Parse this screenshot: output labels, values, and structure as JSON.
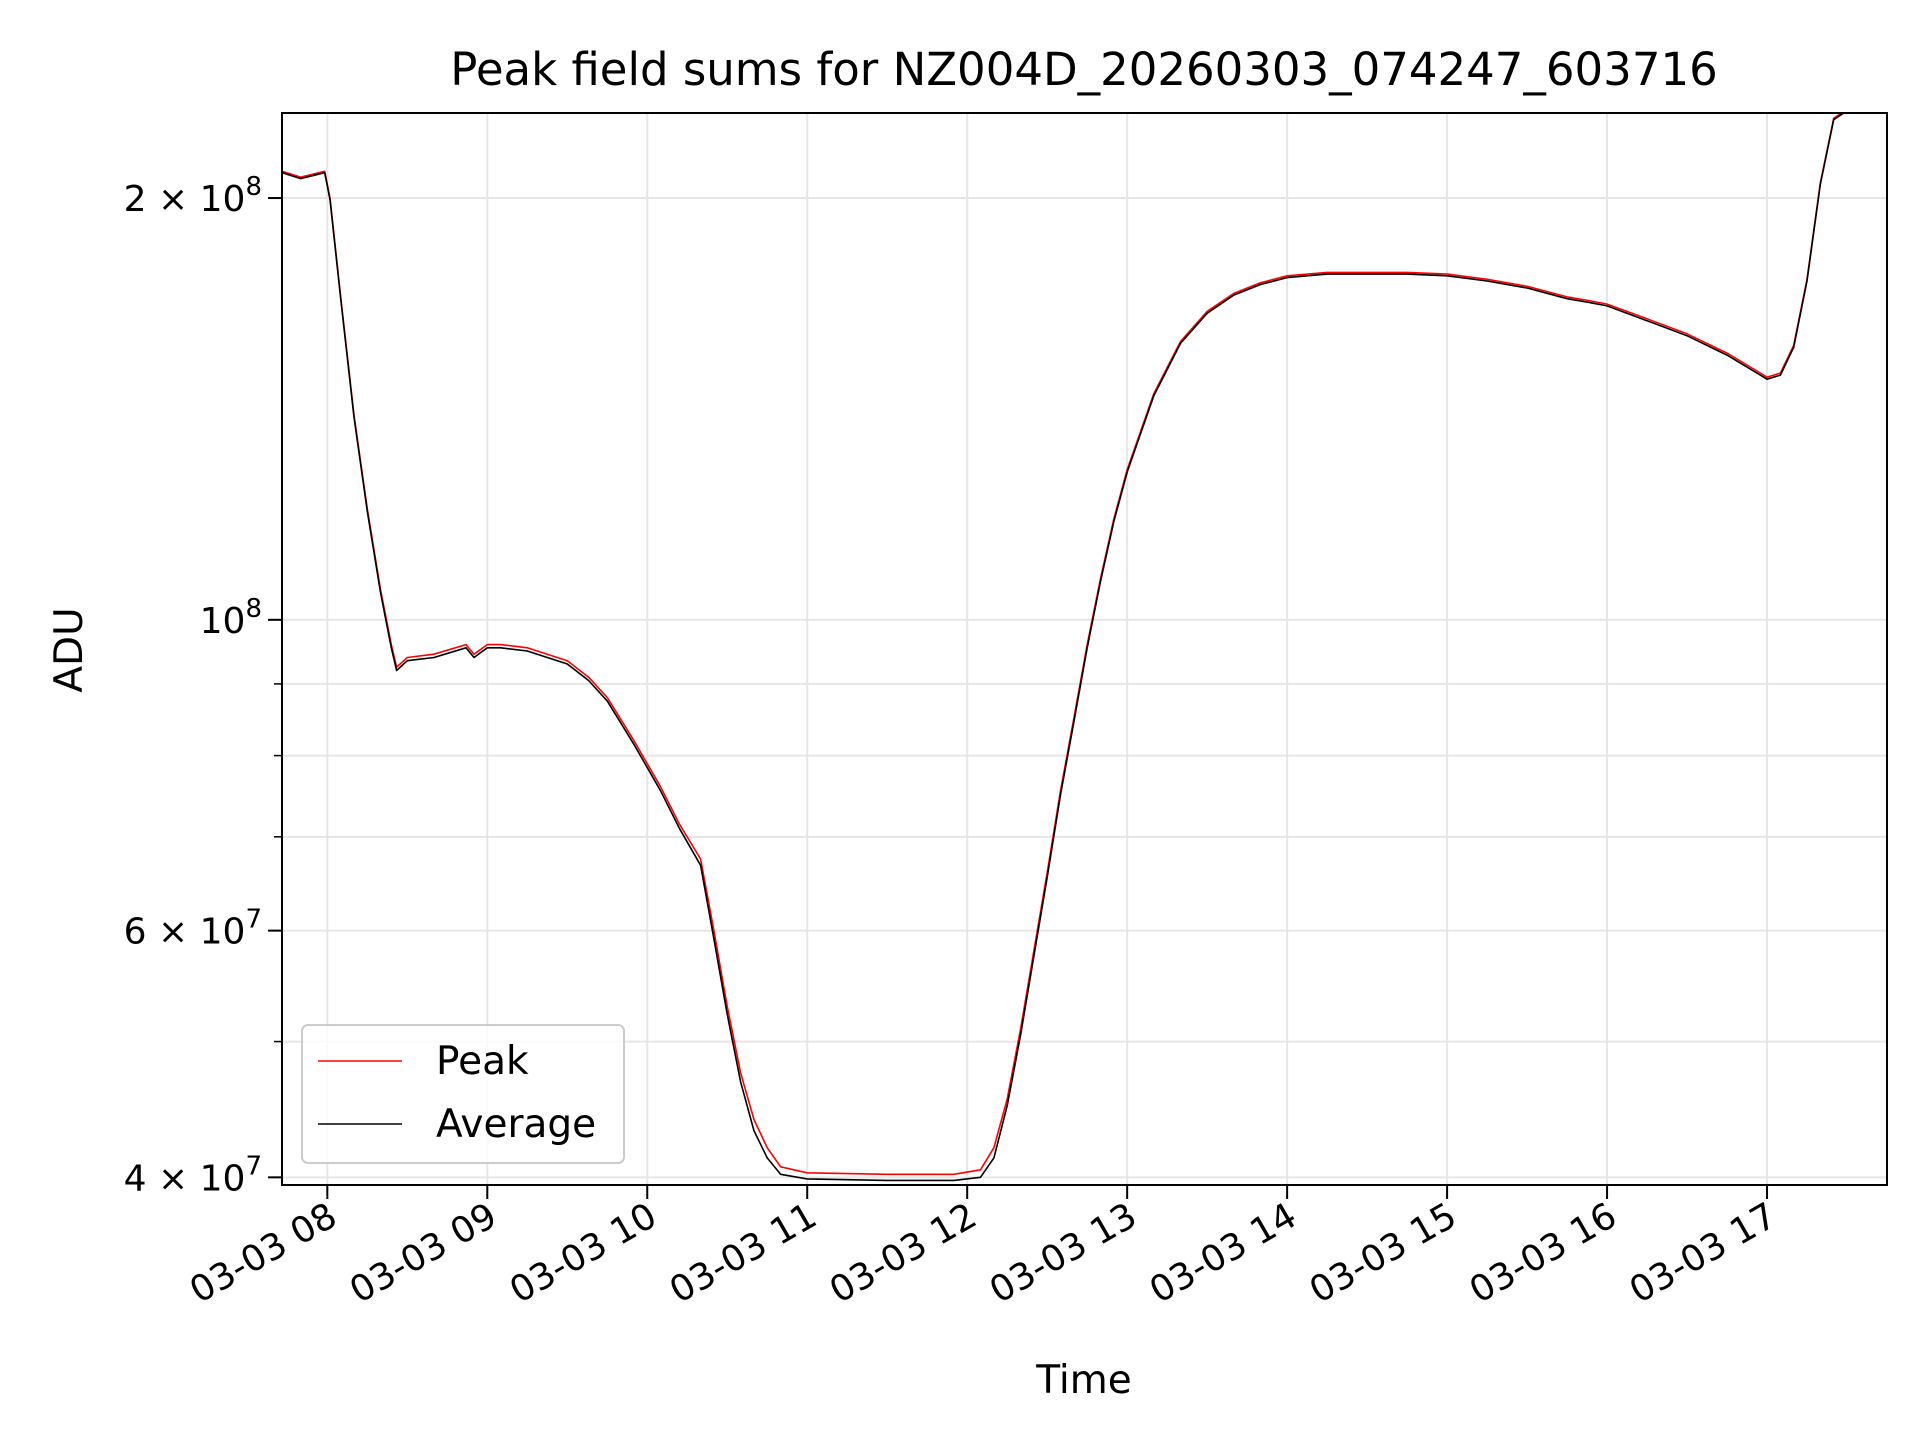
{
  "chart_data": {
    "type": "line",
    "title": "Peak field sums for NZ004D_20260303_074247_603716",
    "xlabel": "Time",
    "ylabel": "ADU",
    "x_axis_type": "datetime",
    "y_scale": "log",
    "xlim": [
      "2026-03-03 07:43",
      "2026-03-03 17:45"
    ],
    "ylim": [
      39500000,
      230000000
    ],
    "x_tick_labels": [
      "03-03 08",
      "03-03 09",
      "03-03 10",
      "03-03 11",
      "03-03 12",
      "03-03 13",
      "03-03 14",
      "03-03 15",
      "03-03 16",
      "03-03 17"
    ],
    "x_tick_times": [
      "2026-03-03 08:00",
      "2026-03-03 09:00",
      "2026-03-03 10:00",
      "2026-03-03 11:00",
      "2026-03-03 12:00",
      "2026-03-03 13:00",
      "2026-03-03 14:00",
      "2026-03-03 15:00",
      "2026-03-03 16:00",
      "2026-03-03 17:00"
    ],
    "y_major_ticks": [
      {
        "value": 40000000,
        "mantissa": "4",
        "exponent": "7"
      },
      {
        "value": 60000000,
        "mantissa": "6",
        "exponent": "7"
      },
      {
        "value": 100000000,
        "mantissa": "",
        "exponent": "8"
      },
      {
        "value": 200000000,
        "mantissa": "2",
        "exponent": "8"
      }
    ],
    "y_minor_ticks": [
      50000000,
      70000000,
      80000000,
      90000000
    ],
    "grid": true,
    "legend_position": "lower-left",
    "series": [
      {
        "name": "Peak",
        "color": "#ff0000",
        "x": [
          "2026-03-03 07:43",
          "2026-03-03 07:50",
          "2026-03-03 07:59",
          "2026-03-03 08:01",
          "2026-03-03 08:05",
          "2026-03-03 08:10",
          "2026-03-03 08:15",
          "2026-03-03 08:20",
          "2026-03-03 08:24",
          "2026-03-03 08:26",
          "2026-03-03 08:30",
          "2026-03-03 08:40",
          "2026-03-03 08:52",
          "2026-03-03 08:55",
          "2026-03-03 09:00",
          "2026-03-03 09:05",
          "2026-03-03 09:15",
          "2026-03-03 09:30",
          "2026-03-03 09:38",
          "2026-03-03 09:45",
          "2026-03-03 09:55",
          "2026-03-03 10:05",
          "2026-03-03 10:12",
          "2026-03-03 10:20",
          "2026-03-03 10:25",
          "2026-03-03 10:30",
          "2026-03-03 10:35",
          "2026-03-03 10:40",
          "2026-03-03 10:45",
          "2026-03-03 10:50",
          "2026-03-03 11:00",
          "2026-03-03 11:30",
          "2026-03-03 11:55",
          "2026-03-03 12:05",
          "2026-03-03 12:10",
          "2026-03-03 12:15",
          "2026-03-03 12:20",
          "2026-03-03 12:25",
          "2026-03-03 12:30",
          "2026-03-03 12:35",
          "2026-03-03 12:40",
          "2026-03-03 12:45",
          "2026-03-03 12:50",
          "2026-03-03 12:55",
          "2026-03-03 13:00",
          "2026-03-03 13:10",
          "2026-03-03 13:20",
          "2026-03-03 13:30",
          "2026-03-03 13:40",
          "2026-03-03 13:50",
          "2026-03-03 14:00",
          "2026-03-03 14:15",
          "2026-03-03 14:30",
          "2026-03-03 14:45",
          "2026-03-03 15:00",
          "2026-03-03 15:15",
          "2026-03-03 15:30",
          "2026-03-03 15:45",
          "2026-03-03 15:53",
          "2026-03-03 16:00",
          "2026-03-03 16:15",
          "2026-03-03 16:30",
          "2026-03-03 16:45",
          "2026-03-03 16:55",
          "2026-03-03 17:00",
          "2026-03-03 17:05",
          "2026-03-03 17:10",
          "2026-03-03 17:15",
          "2026-03-03 17:20",
          "2026-03-03 17:25",
          "2026-03-03 17:31"
        ],
        "y": [
          209000000,
          207000000,
          209000000,
          200000000,
          170000000,
          140000000,
          120000000,
          105000000,
          96000000,
          92500000,
          94000000,
          94500000,
          96000000,
          94500000,
          96000000,
          96000000,
          95500000,
          93500000,
          91000000,
          88000000,
          82000000,
          76000000,
          71500000,
          67500000,
          60000000,
          53000000,
          47500000,
          44000000,
          42000000,
          40700000,
          40300000,
          40200000,
          40200000,
          40500000,
          42000000,
          45500000,
          51000000,
          58000000,
          66000000,
          75500000,
          85000000,
          96000000,
          107000000,
          118000000,
          128000000,
          145000000,
          158000000,
          166000000,
          171000000,
          174000000,
          176000000,
          177000000,
          177000000,
          177000000,
          176500000,
          175000000,
          173000000,
          170000000,
          169000000,
          168000000,
          164000000,
          160000000,
          155000000,
          151000000,
          149000000,
          150000000,
          157000000,
          175000000,
          205000000,
          228000000,
          232000000
        ]
      },
      {
        "name": "Average",
        "color": "#000000",
        "x": [
          "2026-03-03 07:43",
          "2026-03-03 07:50",
          "2026-03-03 07:59",
          "2026-03-03 08:01",
          "2026-03-03 08:05",
          "2026-03-03 08:10",
          "2026-03-03 08:15",
          "2026-03-03 08:20",
          "2026-03-03 08:24",
          "2026-03-03 08:26",
          "2026-03-03 08:30",
          "2026-03-03 08:40",
          "2026-03-03 08:52",
          "2026-03-03 08:55",
          "2026-03-03 09:00",
          "2026-03-03 09:05",
          "2026-03-03 09:15",
          "2026-03-03 09:30",
          "2026-03-03 09:38",
          "2026-03-03 09:45",
          "2026-03-03 09:55",
          "2026-03-03 10:05",
          "2026-03-03 10:12",
          "2026-03-03 10:20",
          "2026-03-03 10:25",
          "2026-03-03 10:30",
          "2026-03-03 10:35",
          "2026-03-03 10:40",
          "2026-03-03 10:45",
          "2026-03-03 10:50",
          "2026-03-03 11:00",
          "2026-03-03 11:30",
          "2026-03-03 11:55",
          "2026-03-03 12:05",
          "2026-03-03 12:10",
          "2026-03-03 12:15",
          "2026-03-03 12:20",
          "2026-03-03 12:25",
          "2026-03-03 12:30",
          "2026-03-03 12:35",
          "2026-03-03 12:40",
          "2026-03-03 12:45",
          "2026-03-03 12:50",
          "2026-03-03 12:55",
          "2026-03-03 13:00",
          "2026-03-03 13:10",
          "2026-03-03 13:20",
          "2026-03-03 13:30",
          "2026-03-03 13:40",
          "2026-03-03 13:50",
          "2026-03-03 14:00",
          "2026-03-03 14:15",
          "2026-03-03 14:30",
          "2026-03-03 14:45",
          "2026-03-03 15:00",
          "2026-03-03 15:15",
          "2026-03-03 15:30",
          "2026-03-03 15:45",
          "2026-03-03 15:53",
          "2026-03-03 16:00",
          "2026-03-03 16:15",
          "2026-03-03 16:30",
          "2026-03-03 16:45",
          "2026-03-03 16:55",
          "2026-03-03 17:00",
          "2026-03-03 17:05",
          "2026-03-03 17:10",
          "2026-03-03 17:15",
          "2026-03-03 17:20",
          "2026-03-03 17:25",
          "2026-03-03 17:31"
        ],
        "y": [
          208500000,
          206500000,
          208500000,
          199500000,
          169500000,
          139500000,
          119500000,
          104500000,
          95500000,
          92000000,
          93500000,
          94000000,
          95500000,
          94000000,
          95500000,
          95500000,
          95000000,
          93000000,
          90500000,
          87500000,
          81500000,
          75500000,
          71000000,
          66800000,
          59200000,
          52300000,
          46800000,
          43200000,
          41300000,
          40200000,
          39900000,
          39800000,
          39800000,
          40000000,
          41300000,
          45000000,
          50500000,
          57500000,
          65500000,
          75000000,
          84500000,
          95500000,
          106500000,
          117500000,
          127500000,
          144500000,
          157500000,
          165500000,
          170500000,
          173500000,
          175500000,
          176500000,
          176500000,
          176500000,
          176000000,
          174500000,
          172500000,
          169500000,
          168500000,
          167500000,
          163500000,
          159500000,
          154500000,
          150500000,
          148500000,
          149500000,
          156500000,
          174500000,
          204500000,
          227500000,
          231500000
        ]
      }
    ]
  }
}
